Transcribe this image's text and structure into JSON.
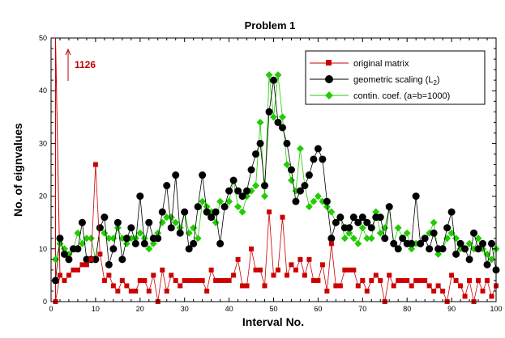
{
  "chart_data": {
    "type": "line",
    "title": "Problem 1",
    "xlabel": "Interval No.",
    "ylabel": "No. of eignvalues",
    "xlim": [
      0,
      100
    ],
    "ylim": [
      0,
      50
    ],
    "xticks": [
      0,
      10,
      20,
      30,
      40,
      50,
      60,
      70,
      80,
      90,
      100
    ],
    "yticks": [
      0,
      10,
      20,
      30,
      40,
      50
    ],
    "legend_position": "top-right",
    "annotation": {
      "text": "1126",
      "x": 2,
      "y": 50
    },
    "series": [
      {
        "name": "original matrix",
        "marker": "square",
        "color": "#cc0000",
        "values": [
          [
            1,
            0
          ],
          [
            2,
            5
          ],
          [
            3,
            4
          ],
          [
            4,
            5
          ],
          [
            5,
            6
          ],
          [
            6,
            6
          ],
          [
            7,
            7
          ],
          [
            8,
            7
          ],
          [
            9,
            8
          ],
          [
            10,
            26
          ],
          [
            11,
            9
          ],
          [
            12,
            4
          ],
          [
            13,
            5
          ],
          [
            14,
            3
          ],
          [
            15,
            2
          ],
          [
            16,
            4
          ],
          [
            17,
            3
          ],
          [
            18,
            2
          ],
          [
            19,
            2
          ],
          [
            20,
            4
          ],
          [
            21,
            4
          ],
          [
            22,
            2
          ],
          [
            23,
            5
          ],
          [
            24,
            0
          ],
          [
            25,
            6
          ],
          [
            26,
            2
          ],
          [
            27,
            5
          ],
          [
            28,
            4
          ],
          [
            29,
            3
          ],
          [
            30,
            4
          ],
          [
            31,
            4
          ],
          [
            32,
            4
          ],
          [
            33,
            4
          ],
          [
            34,
            4
          ],
          [
            35,
            2
          ],
          [
            36,
            6
          ],
          [
            37,
            4
          ],
          [
            38,
            4
          ],
          [
            39,
            4
          ],
          [
            40,
            4
          ],
          [
            41,
            5
          ],
          [
            42,
            8
          ],
          [
            43,
            3
          ],
          [
            44,
            3
          ],
          [
            45,
            10
          ],
          [
            46,
            6
          ],
          [
            47,
            6
          ],
          [
            48,
            3
          ],
          [
            49,
            17
          ],
          [
            50,
            5
          ],
          [
            51,
            6
          ],
          [
            52,
            16
          ],
          [
            53,
            5
          ],
          [
            54,
            7
          ],
          [
            55,
            6
          ],
          [
            56,
            8
          ],
          [
            57,
            5
          ],
          [
            58,
            8
          ],
          [
            59,
            4
          ],
          [
            60,
            4
          ],
          [
            61,
            7
          ],
          [
            62,
            2
          ],
          [
            63,
            11
          ],
          [
            64,
            3
          ],
          [
            65,
            3
          ],
          [
            66,
            6
          ],
          [
            67,
            6
          ],
          [
            68,
            6
          ],
          [
            69,
            3
          ],
          [
            70,
            4
          ],
          [
            71,
            2
          ],
          [
            72,
            4
          ],
          [
            73,
            5
          ],
          [
            74,
            4
          ],
          [
            75,
            0
          ],
          [
            76,
            5
          ],
          [
            77,
            3
          ],
          [
            78,
            4
          ],
          [
            79,
            4
          ],
          [
            80,
            4
          ],
          [
            81,
            3
          ],
          [
            82,
            4
          ],
          [
            83,
            4
          ],
          [
            84,
            4
          ],
          [
            85,
            3
          ],
          [
            86,
            2
          ],
          [
            87,
            3
          ],
          [
            88,
            2
          ],
          [
            89,
            0
          ],
          [
            90,
            5
          ],
          [
            91,
            4
          ],
          [
            92,
            3
          ],
          [
            93,
            1
          ],
          [
            94,
            4
          ],
          [
            95,
            0
          ],
          [
            96,
            4
          ],
          [
            97,
            2
          ],
          [
            98,
            4
          ],
          [
            99,
            1
          ],
          [
            100,
            3
          ]
        ]
      },
      {
        "name": "geometric scaling (L2)",
        "marker": "circle",
        "color": "#000000",
        "values": [
          [
            1,
            4
          ],
          [
            2,
            12
          ],
          [
            3,
            9
          ],
          [
            4,
            8
          ],
          [
            5,
            10
          ],
          [
            6,
            10
          ],
          [
            7,
            15
          ],
          [
            8,
            8
          ],
          [
            9,
            8
          ],
          [
            10,
            8
          ],
          [
            11,
            14
          ],
          [
            12,
            16
          ],
          [
            13,
            7
          ],
          [
            14,
            10
          ],
          [
            15,
            15
          ],
          [
            16,
            8
          ],
          [
            17,
            12
          ],
          [
            18,
            14
          ],
          [
            19,
            11
          ],
          [
            20,
            20
          ],
          [
            21,
            11
          ],
          [
            22,
            15
          ],
          [
            23,
            12
          ],
          [
            24,
            12
          ],
          [
            25,
            17
          ],
          [
            26,
            22
          ],
          [
            27,
            14
          ],
          [
            28,
            24
          ],
          [
            29,
            13
          ],
          [
            30,
            17
          ],
          [
            31,
            10
          ],
          [
            32,
            11
          ],
          [
            33,
            18
          ],
          [
            34,
            24
          ],
          [
            35,
            17
          ],
          [
            36,
            16
          ],
          [
            37,
            17
          ],
          [
            38,
            11
          ],
          [
            39,
            18
          ],
          [
            40,
            21
          ],
          [
            41,
            23
          ],
          [
            42,
            21
          ],
          [
            43,
            20
          ],
          [
            44,
            21
          ],
          [
            45,
            25
          ],
          [
            46,
            28
          ],
          [
            47,
            30
          ],
          [
            48,
            22
          ],
          [
            49,
            36
          ],
          [
            50,
            42
          ],
          [
            51,
            34
          ],
          [
            52,
            33
          ],
          [
            53,
            30
          ],
          [
            54,
            25
          ],
          [
            55,
            19
          ],
          [
            56,
            21
          ],
          [
            57,
            22
          ],
          [
            58,
            24
          ],
          [
            59,
            27
          ],
          [
            60,
            29
          ],
          [
            61,
            27
          ],
          [
            62,
            19
          ],
          [
            63,
            12
          ],
          [
            64,
            15
          ],
          [
            65,
            16
          ],
          [
            66,
            14
          ],
          [
            67,
            14
          ],
          [
            68,
            16
          ],
          [
            69,
            15
          ],
          [
            70,
            16
          ],
          [
            71,
            15
          ],
          [
            72,
            14
          ],
          [
            73,
            16
          ],
          [
            74,
            16
          ],
          [
            75,
            12
          ],
          [
            76,
            18
          ],
          [
            77,
            11
          ],
          [
            78,
            10
          ],
          [
            79,
            12
          ],
          [
            80,
            11
          ],
          [
            81,
            11
          ],
          [
            82,
            20
          ],
          [
            83,
            11
          ],
          [
            84,
            12
          ],
          [
            85,
            10
          ],
          [
            86,
            13
          ],
          [
            87,
            10
          ],
          [
            88,
            10
          ],
          [
            89,
            14
          ],
          [
            90,
            17
          ],
          [
            91,
            9
          ],
          [
            92,
            11
          ],
          [
            93,
            10
          ],
          [
            94,
            8
          ],
          [
            95,
            13
          ],
          [
            96,
            10
          ],
          [
            97,
            11
          ],
          [
            98,
            7
          ],
          [
            99,
            11
          ],
          [
            100,
            6
          ]
        ]
      },
      {
        "name": "contin. coef. (a=b=1000)",
        "marker": "diamond",
        "color": "#22cc00",
        "values": [
          [
            1,
            8
          ],
          [
            2,
            11
          ],
          [
            3,
            10
          ],
          [
            4,
            9
          ],
          [
            5,
            10
          ],
          [
            6,
            13
          ],
          [
            7,
            11
          ],
          [
            8,
            12
          ],
          [
            9,
            12
          ],
          [
            10,
            8
          ],
          [
            11,
            14
          ],
          [
            12,
            13
          ],
          [
            13,
            12
          ],
          [
            14,
            12
          ],
          [
            15,
            14
          ],
          [
            16,
            12
          ],
          [
            17,
            11
          ],
          [
            18,
            12
          ],
          [
            19,
            12
          ],
          [
            20,
            13
          ],
          [
            21,
            12
          ],
          [
            22,
            10
          ],
          [
            23,
            11
          ],
          [
            24,
            13
          ],
          [
            25,
            15
          ],
          [
            26,
            16
          ],
          [
            27,
            16
          ],
          [
            28,
            15
          ],
          [
            29,
            14
          ],
          [
            30,
            17
          ],
          [
            31,
            13
          ],
          [
            32,
            14
          ],
          [
            33,
            12
          ],
          [
            34,
            19
          ],
          [
            35,
            18
          ],
          [
            36,
            17
          ],
          [
            37,
            15
          ],
          [
            38,
            19
          ],
          [
            39,
            18
          ],
          [
            40,
            19
          ],
          [
            41,
            23
          ],
          [
            42,
            18
          ],
          [
            43,
            17
          ],
          [
            44,
            20
          ],
          [
            45,
            21
          ],
          [
            46,
            22
          ],
          [
            47,
            34
          ],
          [
            48,
            20
          ],
          [
            49,
            43
          ],
          [
            50,
            35
          ],
          [
            51,
            43
          ],
          [
            52,
            35
          ],
          [
            53,
            26
          ],
          [
            54,
            23
          ],
          [
            55,
            21
          ],
          [
            56,
            29
          ],
          [
            57,
            22
          ],
          [
            58,
            18
          ],
          [
            59,
            19
          ],
          [
            60,
            20
          ],
          [
            61,
            19
          ],
          [
            62,
            18
          ],
          [
            63,
            17
          ],
          [
            64,
            15
          ],
          [
            65,
            16
          ],
          [
            66,
            12
          ],
          [
            67,
            13
          ],
          [
            68,
            12
          ],
          [
            69,
            11
          ],
          [
            70,
            14
          ],
          [
            71,
            12
          ],
          [
            72,
            12
          ],
          [
            73,
            17
          ],
          [
            74,
            13
          ],
          [
            75,
            14
          ],
          [
            76,
            18
          ],
          [
            77,
            11
          ],
          [
            78,
            14
          ],
          [
            79,
            12
          ],
          [
            80,
            13
          ],
          [
            81,
            10
          ],
          [
            82,
            11
          ],
          [
            83,
            11
          ],
          [
            84,
            12
          ],
          [
            85,
            13
          ],
          [
            86,
            15
          ],
          [
            87,
            9
          ],
          [
            88,
            10
          ],
          [
            89,
            12
          ],
          [
            90,
            13
          ],
          [
            91,
            12
          ],
          [
            92,
            10
          ],
          [
            93,
            10
          ],
          [
            94,
            11
          ],
          [
            95,
            10
          ],
          [
            96,
            12
          ],
          [
            97,
            10
          ],
          [
            98,
            9
          ],
          [
            99,
            8
          ],
          [
            100,
            10
          ]
        ]
      }
    ]
  },
  "legend": {
    "line1": "original matrix",
    "line2_prefix": "geometric scaling (L",
    "line2_sub": "2",
    "line2_suffix": ")",
    "line3": "contin. coef. (a=b=1000)"
  }
}
